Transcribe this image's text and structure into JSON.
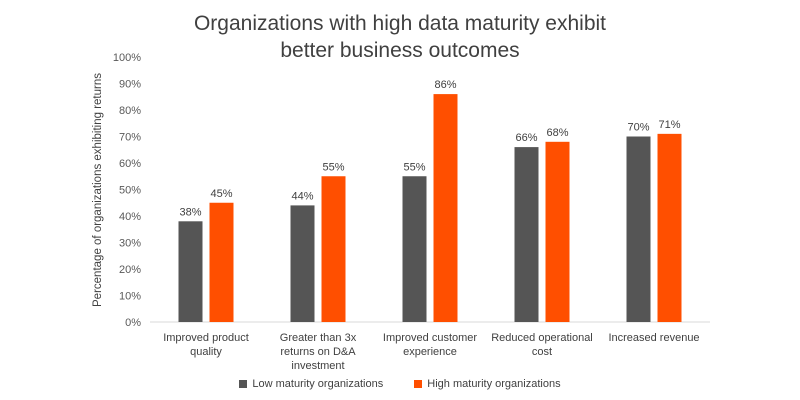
{
  "chart_data": {
    "type": "bar",
    "title_lines": [
      "Organizations with high data maturity exhibit",
      "better business outcomes"
    ],
    "ylabel": "Percentage of organizations exhibiting returns",
    "ylim": [
      0,
      100
    ],
    "yticks": [
      "0%",
      "10%",
      "20%",
      "30%",
      "40%",
      "50%",
      "60%",
      "70%",
      "80%",
      "90%",
      "100%"
    ],
    "categories": [
      [
        "Improved product",
        "quality"
      ],
      [
        "Greater than 3x",
        "returns on D&A",
        "investment"
      ],
      [
        "Improved customer",
        "experience"
      ],
      [
        "Reduced operational",
        "cost"
      ],
      [
        "Increased revenue"
      ]
    ],
    "series": [
      {
        "name": "Low maturity organizations",
        "color": "#555555",
        "values": [
          38,
          44,
          55,
          66,
          70
        ],
        "labels": [
          "38%",
          "44%",
          "55%",
          "66%",
          "70%"
        ]
      },
      {
        "name": "High maturity organizations",
        "color": "#FF4F00",
        "values": [
          45,
          55,
          86,
          68,
          71
        ],
        "labels": [
          "45%",
          "55%",
          "86%",
          "68%",
          "71%"
        ]
      }
    ],
    "legend_position": "bottom",
    "grid": false
  }
}
